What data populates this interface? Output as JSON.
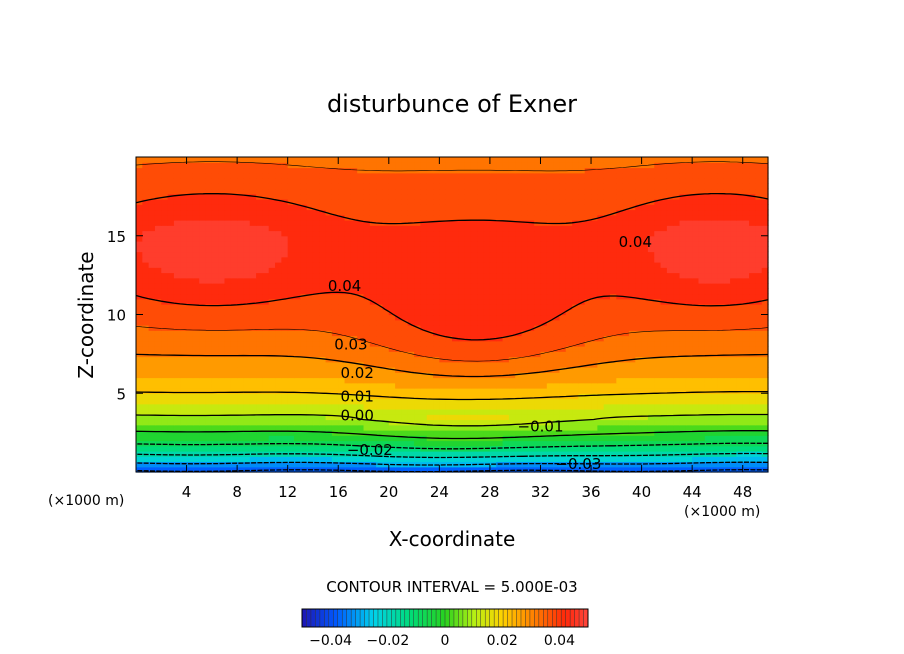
{
  "chart_data": {
    "type": "heatmap",
    "title": "disturbunce of Exner",
    "xlabel": "X-coordinate",
    "ylabel": "Z-coordinate",
    "x_unit_left": "(×1000 m)",
    "x_unit_right": "(×1000 m)",
    "xlim": [
      0,
      50
    ],
    "ylim": [
      0,
      20
    ],
    "x_ticks": [
      4,
      8,
      12,
      16,
      20,
      24,
      28,
      32,
      36,
      40,
      44,
      48
    ],
    "y_ticks": [
      5,
      10,
      15
    ],
    "contour_interval_text": "CONTOUR INTERVAL = 5.000E-03",
    "contour_interval": 0.005,
    "colorbar": {
      "min": -0.05,
      "max": 0.05,
      "ticks": [
        -0.04,
        -0.02,
        0,
        0.02,
        0.04
      ],
      "tick_labels": [
        "−0.04",
        "−0.02",
        "0",
        "0.02",
        "0.04"
      ]
    },
    "contour_labels": [
      {
        "text": "0.04",
        "x": 16.5,
        "z": 11.8
      },
      {
        "text": "0.04",
        "x": 39.5,
        "z": 14.6
      },
      {
        "text": "0.03",
        "x": 17.0,
        "z": 8.1
      },
      {
        "text": "0.02",
        "x": 17.5,
        "z": 6.3
      },
      {
        "text": "0.01",
        "x": 17.5,
        "z": 4.8
      },
      {
        "text": "0.00",
        "x": 17.5,
        "z": 3.6
      },
      {
        "text": "−0.01",
        "x": 32.0,
        "z": 2.9
      },
      {
        "text": "−0.02",
        "x": 18.5,
        "z": 1.4
      },
      {
        "text": "−0.03",
        "x": 35.0,
        "z": 0.5
      }
    ],
    "field_description": "Exner pressure perturbation: positive (~0.045) in upper lobes at left and right, ~0.036 in central saddle near x=26-30, decreasing downward to ~-0.04 at surface minimum near x=27"
  }
}
